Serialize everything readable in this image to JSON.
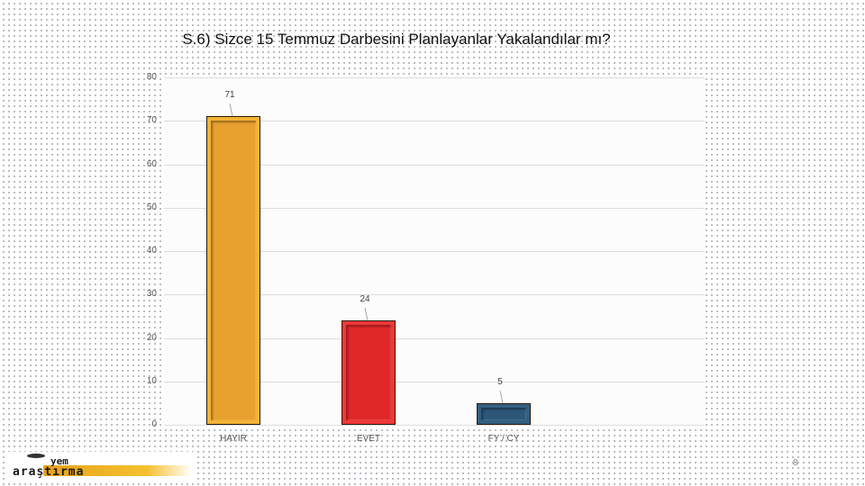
{
  "slide": {
    "title": "S.6) Sizce 15 Temmuz Darbesini Planlayanlar Yakalandılar mı?",
    "page_number": "8",
    "logo": {
      "line1": "yem",
      "line2": "araştırma"
    }
  },
  "chart_data": {
    "type": "bar",
    "title": "S.6) Sizce 15 Temmuz Darbesini Planlayanlar Yakalandılar mı?",
    "categories": [
      "HAYIR",
      "EVET",
      "FY / CY"
    ],
    "values": [
      71,
      24,
      5
    ],
    "data_labels": [
      "71",
      "24",
      "5"
    ],
    "colors": [
      "#E8A02E",
      "#E02828",
      "#2D5678"
    ],
    "xlabel": "",
    "ylabel": "",
    "ylim": [
      0,
      80
    ],
    "yticks": [
      0,
      10,
      20,
      30,
      40,
      50,
      60,
      70,
      80
    ],
    "ytick_labels": [
      "0",
      "10",
      "20",
      "30",
      "40",
      "50",
      "60",
      "70",
      "80"
    ],
    "grid": true,
    "legend": "none"
  }
}
